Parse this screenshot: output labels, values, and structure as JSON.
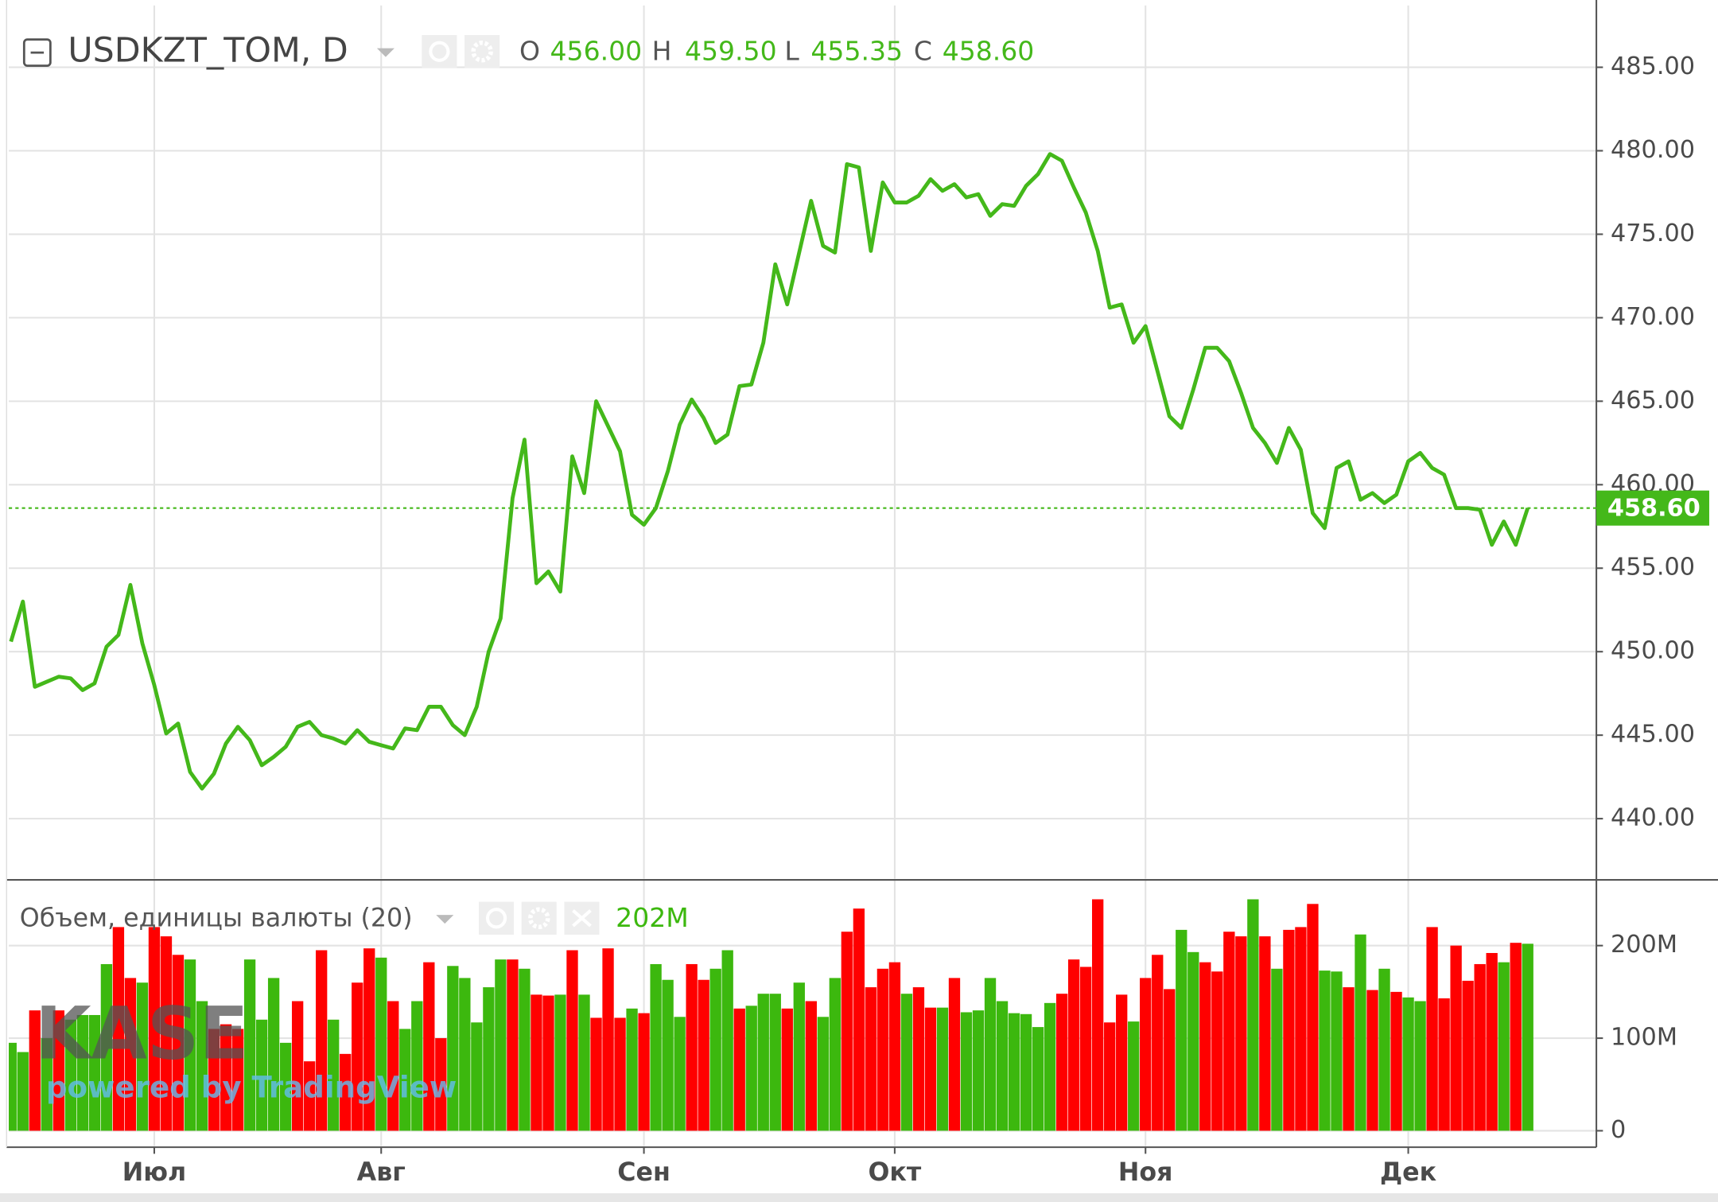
{
  "chart_data": [
    {
      "type": "line",
      "title": "USDKZT_TOM, D",
      "ohlc": [
        {
          "name": "O",
          "value": 456,
          "label": "456.00"
        },
        {
          "name": "H",
          "value": 459.5,
          "label": "459.50"
        },
        {
          "name": "L",
          "value": 455.35,
          "label": "455.35"
        },
        {
          "name": "C",
          "value": 458.6,
          "label": "458.60"
        }
      ],
      "color": "#44b81a",
      "values": [
        450.6,
        453.0,
        447.9,
        448.2,
        448.5,
        448.4,
        447.7,
        448.1,
        450.3,
        451.0,
        454.0,
        450.5,
        448.0,
        445.1,
        445.7,
        442.8,
        441.8,
        442.7,
        444.5,
        445.5,
        444.7,
        443.2,
        443.7,
        444.3,
        445.5,
        445.8,
        445.0,
        444.8,
        444.5,
        445.3,
        444.6,
        444.4,
        444.2,
        445.4,
        445.3,
        446.7,
        446.7,
        445.6,
        445.0,
        446.7,
        450.0,
        452.0,
        459.2,
        462.7,
        454.1,
        454.8,
        453.6,
        461.7,
        459.5,
        465.0,
        463.5,
        462.0,
        458.2,
        457.6,
        458.6,
        460.8,
        463.6,
        465.1,
        464.0,
        462.5,
        463.0,
        465.9,
        466.0,
        468.5,
        473.2,
        470.8,
        473.9,
        477.0,
        474.3,
        473.9,
        479.2,
        479.0,
        474.0,
        478.1,
        476.9,
        476.9,
        477.3,
        478.3,
        477.6,
        478.0,
        477.2,
        477.4,
        476.1,
        476.8,
        476.7,
        477.9,
        478.6,
        479.8,
        479.4,
        477.8,
        476.3,
        474.0,
        470.6,
        470.8,
        468.5,
        469.5,
        466.8,
        464.1,
        463.4,
        465.7,
        468.2,
        468.2,
        467.4,
        465.5,
        463.4,
        462.5,
        461.3,
        463.4,
        462.1,
        458.3,
        457.4,
        461.0,
        461.4,
        459.1,
        459.5,
        458.9,
        459.4,
        461.4,
        461.9,
        461.0,
        460.6,
        458.6,
        458.6,
        458.5,
        456.4,
        457.8,
        456.4,
        458.6
      ],
      "ylim": [
        436.4,
        488.7
      ],
      "yticks": [
        {
          "value": 440,
          "label": "440.00"
        },
        {
          "value": 445,
          "label": "445.00"
        },
        {
          "value": 450,
          "label": "450.00"
        },
        {
          "value": 455,
          "label": "455.00"
        },
        {
          "value": 460,
          "label": "460.00"
        },
        {
          "value": 465,
          "label": "465.00"
        },
        {
          "value": 470,
          "label": "470.00"
        },
        {
          "value": 475,
          "label": "475.00"
        },
        {
          "value": 480,
          "label": "480.00"
        },
        {
          "value": 485,
          "label": "485.00"
        }
      ],
      "last_value": {
        "value": 458.6,
        "label": "458.60"
      },
      "grid": true
    },
    {
      "type": "bar",
      "title": "Объем, единицы валюты (20)",
      "last_value": {
        "value": 202,
        "label": "202M"
      },
      "categories": [
        null,
        null,
        null,
        null,
        null,
        null,
        null,
        null,
        null,
        null,
        null,
        null,
        "Июл",
        null,
        null,
        null,
        null,
        null,
        null,
        null,
        null,
        null,
        null,
        null,
        null,
        null,
        null,
        null,
        null,
        null,
        null,
        "Авг",
        null,
        null,
        null,
        null,
        null,
        null,
        null,
        null,
        null,
        null,
        null,
        null,
        null,
        null,
        null,
        null,
        null,
        null,
        null,
        null,
        null,
        "Сен",
        null,
        null,
        null,
        null,
        null,
        null,
        null,
        null,
        null,
        null,
        null,
        null,
        null,
        null,
        null,
        null,
        null,
        null,
        null,
        null,
        "Окт",
        null,
        null,
        null,
        null,
        null,
        null,
        null,
        null,
        null,
        null,
        null,
        null,
        null,
        null,
        null,
        null,
        null,
        null,
        null,
        null,
        "Ноя",
        null,
        null,
        null,
        null,
        null,
        null,
        null,
        null,
        null,
        null,
        null,
        null,
        null,
        null,
        null,
        null,
        null,
        null,
        null,
        null,
        null,
        "Дек",
        null,
        null,
        null,
        null,
        null,
        null,
        null,
        null,
        null,
        null
      ],
      "values": [
        95,
        85,
        130,
        100,
        130,
        120,
        125,
        125,
        180,
        220,
        165,
        160,
        220,
        210,
        190,
        185,
        140,
        110,
        115,
        110,
        185,
        120,
        165,
        95,
        140,
        75,
        195,
        120,
        83,
        160,
        197,
        187,
        140,
        110,
        140,
        182,
        100,
        178,
        165,
        117,
        155,
        185,
        185,
        175,
        147,
        146,
        147,
        195,
        147,
        122,
        197,
        122,
        132,
        127,
        180,
        163,
        123,
        180,
        163,
        175,
        195,
        132,
        135,
        148,
        148,
        132,
        160,
        140,
        123,
        165,
        215,
        240,
        155,
        175,
        182,
        148,
        155,
        133,
        133,
        165,
        128,
        130,
        165,
        140,
        127,
        126,
        112,
        138,
        148,
        185,
        177,
        250,
        117,
        147,
        118,
        165,
        190,
        153,
        217,
        193,
        182,
        172,
        215,
        210,
        250,
        210,
        175,
        217,
        220,
        245,
        173,
        172,
        155,
        212,
        152,
        175,
        150,
        144,
        140,
        220,
        143,
        200,
        162,
        180,
        192,
        182,
        203,
        202
      ],
      "directions": [
        "up",
        "up",
        "down",
        "up",
        "down",
        "up",
        "up",
        "up",
        "up",
        "down",
        "down",
        "up",
        "down",
        "down",
        "down",
        "up",
        "up",
        "down",
        "down",
        "down",
        "up",
        "up",
        "up",
        "up",
        "down",
        "down",
        "down",
        "up",
        "down",
        "down",
        "down",
        "up",
        "down",
        "up",
        "up",
        "down",
        "down",
        "up",
        "up",
        "up",
        "up",
        "up",
        "down",
        "up",
        "down",
        "down",
        "up",
        "down",
        "up",
        "down",
        "down",
        "down",
        "up",
        "down",
        "up",
        "up",
        "up",
        "down",
        "down",
        "up",
        "up",
        "down",
        "up",
        "up",
        "up",
        "down",
        "up",
        "down",
        "up",
        "up",
        "down",
        "down",
        "down",
        "down",
        "down",
        "up",
        "down",
        "down",
        "up",
        "down",
        "up",
        "up",
        "up",
        "up",
        "up",
        "up",
        "up",
        "up",
        "down",
        "down",
        "down",
        "down",
        "down",
        "down",
        "up",
        "down",
        "down",
        "down",
        "up",
        "up",
        "down",
        "down",
        "down",
        "down",
        "up",
        "down",
        "up",
        "down",
        "down",
        "down",
        "up",
        "up",
        "down",
        "up",
        "down",
        "up",
        "down",
        "up",
        "up",
        "down",
        "down",
        "down",
        "down",
        "down",
        "down",
        "up",
        "down",
        "up"
      ],
      "colors": {
        "up": "#3cb80e",
        "down": "#ff0000"
      },
      "ylim": [
        -16.6,
        271
      ],
      "yticks": [
        0,
        {
          "value": 100,
          "label": "100M"
        },
        {
          "value": 200,
          "label": "200M"
        }
      ],
      "grid": true
    }
  ],
  "watermark": {
    "logo": "KASE",
    "text": "powered by TradingView"
  }
}
